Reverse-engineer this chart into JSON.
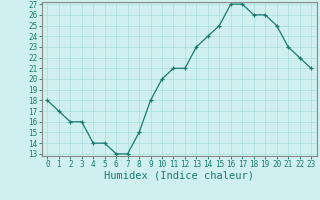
{
  "x": [
    0,
    1,
    2,
    3,
    4,
    5,
    6,
    7,
    8,
    9,
    10,
    11,
    12,
    13,
    14,
    15,
    16,
    17,
    18,
    19,
    20,
    21,
    22,
    23
  ],
  "y": [
    18,
    17,
    16,
    16,
    14,
    14,
    13,
    13,
    15,
    18,
    20,
    21,
    21,
    23,
    24,
    25,
    27,
    27,
    26,
    26,
    25,
    23,
    22,
    21
  ],
  "xlabel": "Humidex (Indice chaleur)",
  "ylim": [
    13,
    27
  ],
  "xlim": [
    -0.5,
    23.5
  ],
  "yticks": [
    13,
    14,
    15,
    16,
    17,
    18,
    19,
    20,
    21,
    22,
    23,
    24,
    25,
    26,
    27
  ],
  "xticks": [
    0,
    1,
    2,
    3,
    4,
    5,
    6,
    7,
    8,
    9,
    10,
    11,
    12,
    13,
    14,
    15,
    16,
    17,
    18,
    19,
    20,
    21,
    22,
    23
  ],
  "line_color": "#1a7a6e",
  "bg_color": "#cff0ee",
  "grid_color": "#aadddd",
  "border_color": "#888888",
  "tick_label_color": "#1a7a6e",
  "xlabel_color": "#1a7a6e",
  "tick_fontsize": 5.5,
  "xlabel_fontsize": 7.5
}
